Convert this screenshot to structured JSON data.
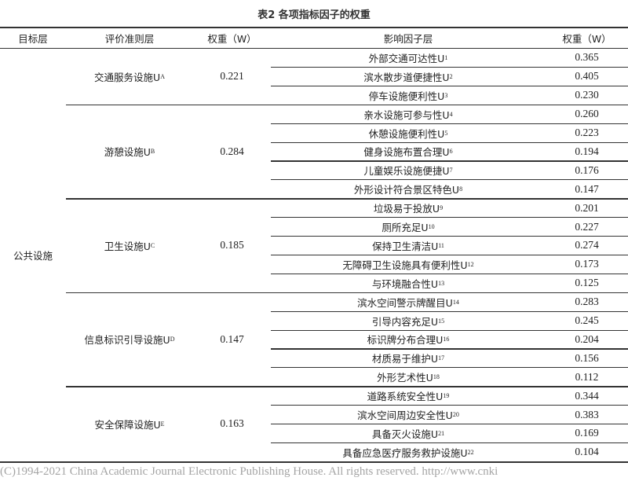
{
  "title": "表2  各项指标因子的权重",
  "headers": [
    "目标层",
    "评价准则层",
    "权重（W）",
    "影响因子层",
    "权重（W）"
  ],
  "target": "公共设施",
  "groups": [
    {
      "name": "交通服务设施U",
      "sub": "A",
      "weight": "0.221",
      "factors": [
        {
          "name": "外部交通可达性U",
          "sub": "1",
          "weight": "0.365"
        },
        {
          "name": "滨水散步道便捷性U",
          "sub": "2",
          "weight": "0.405"
        },
        {
          "name": "停车设施便利性U",
          "sub": "3",
          "weight": "0.230"
        }
      ]
    },
    {
      "name": "游憩设施U",
      "sub": "B",
      "weight": "0.284",
      "factors": [
        {
          "name": "亲水设施可参与性U",
          "sub": "4",
          "weight": "0.260"
        },
        {
          "name": "休憩设施便利性U",
          "sub": "5",
          "weight": "0.223"
        },
        {
          "name": "健身设施布置合理U",
          "sub": "6",
          "weight": "0.194"
        },
        {
          "name": "儿童娱乐设施便捷U",
          "sub": "7",
          "weight": "0.176"
        },
        {
          "name": "外形设计符合景区特色U",
          "sub": "8",
          "weight": "0.147"
        }
      ]
    },
    {
      "name": "卫生设施U",
      "sub": "C",
      "weight": "0.185",
      "factors": [
        {
          "name": "垃圾易于投放U",
          "sub": "9",
          "weight": "0.201"
        },
        {
          "name": "厕所充足U",
          "sub": "10",
          "weight": "0.227"
        },
        {
          "name": "保持卫生清洁U",
          "sub": "11",
          "weight": "0.274"
        },
        {
          "name": "无障碍卫生设施具有便利性U",
          "sub": "12",
          "weight": "0.173"
        },
        {
          "name": "与环境融合性U",
          "sub": "13",
          "weight": "0.125"
        }
      ]
    },
    {
      "name": "信息标识引导设施U",
      "sub": "D",
      "weight": "0.147",
      "factors": [
        {
          "name": "滨水空间警示牌醒目U",
          "sub": "14",
          "weight": "0.283"
        },
        {
          "name": "引导内容充足U",
          "sub": "15",
          "weight": "0.245"
        },
        {
          "name": "标识牌分布合理U",
          "sub": "16",
          "weight": "0.204"
        },
        {
          "name": "材质易于维护U",
          "sub": "17",
          "weight": "0.156"
        },
        {
          "name": "外形艺术性U",
          "sub": "18",
          "weight": "0.112"
        }
      ]
    },
    {
      "name": "安全保障设施U",
      "sub": "E",
      "weight": "0.163",
      "factors": [
        {
          "name": "道路系统安全性U",
          "sub": "19",
          "weight": "0.344"
        },
        {
          "name": "滨水空间周边安全性U",
          "sub": "20",
          "weight": "0.383"
        },
        {
          "name": "具备灭火设施U",
          "sub": "21",
          "weight": "0.169"
        },
        {
          "name": "具备应急医疗服务救护设施U",
          "sub": "22",
          "weight": "0.104"
        }
      ]
    }
  ],
  "watermark": "(C)1994-2021 China Academic Journal Electronic Publishing House. All rights reserved.    http://www.cnki"
}
